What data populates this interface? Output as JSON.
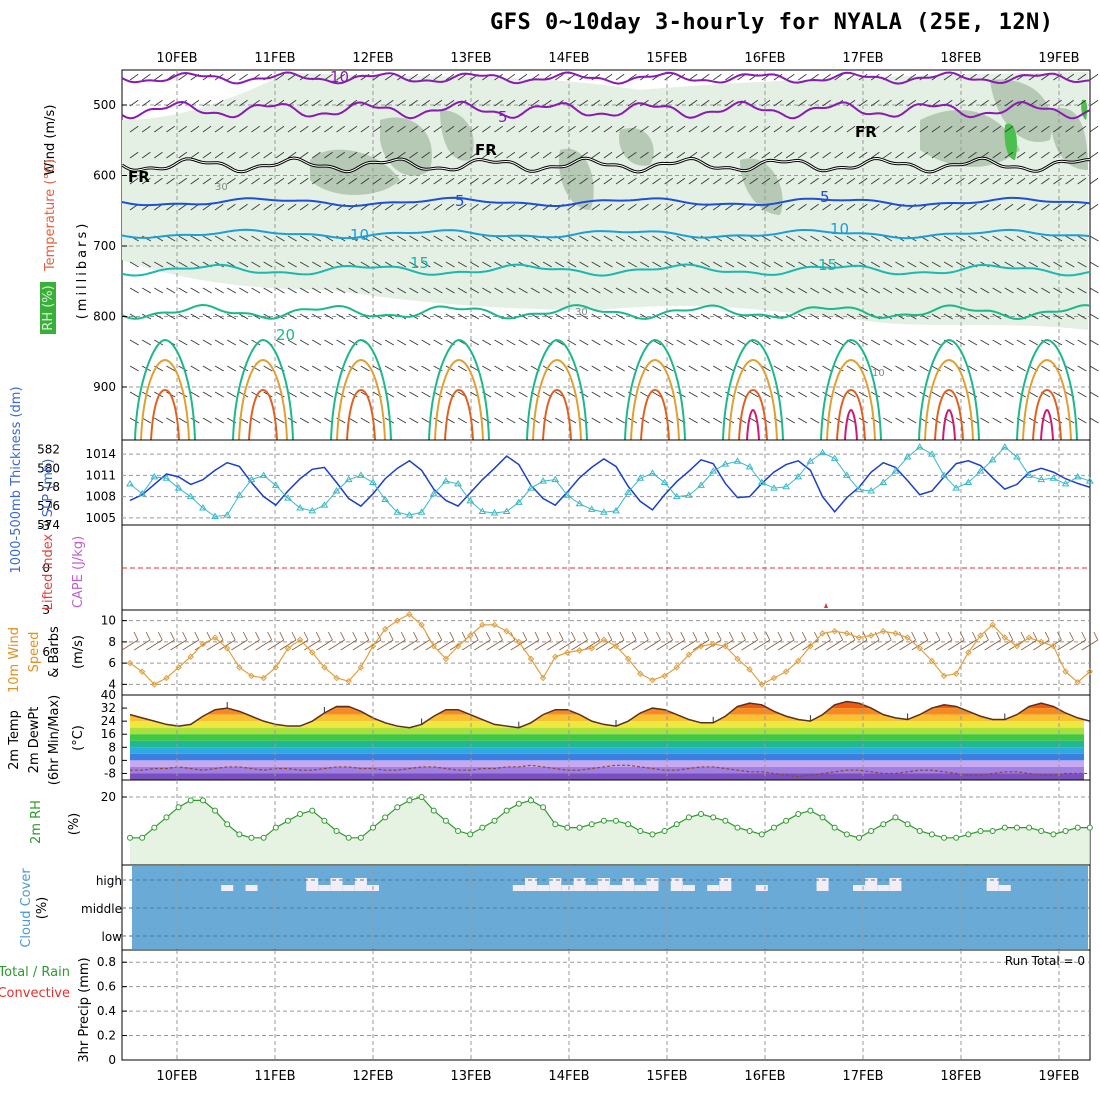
{
  "title": "GFS 0~10day 3-hourly for NYALA (25E, 12N)",
  "dates": [
    "10FEB",
    "11FEB",
    "12FEB",
    "13FEB",
    "14FEB",
    "15FEB",
    "16FEB",
    "17FEB",
    "18FEB",
    "19FEB"
  ],
  "colors": {
    "cross_section_purple": "#8a1ab3",
    "cross_section_black": "#000000",
    "cross_section_blue": "#1e4fd6",
    "cross_section_lightblue": "#1aa0d6",
    "cross_section_teal": "#1ab8b0",
    "cross_section_green": "#1ab88a",
    "cross_section_orange": "#e0a030",
    "cross_section_dkorange": "#e06020",
    "cross_section_magenta": "#d01a70",
    "rh_fill_light": "#e3f0e3",
    "rh_fill_mid": "#b5c9b5",
    "rh_fill_dark": "#8aa08a",
    "thickness_line": "#1a3fc8",
    "slp_line": "#3ab8c8",
    "wind_speed_line": "#e0a040",
    "wind_barbs": "#8b5a3a",
    "rh2m_line": "#2e9a2e",
    "rh2m_fill": "#e6f2e2",
    "cloud_fill": "#6aaad6",
    "cloud_clear": "#f3eef6",
    "lifted_index_zero": "#e03030"
  },
  "panels": {
    "cross_section": {
      "ylabel_wind": "Wind (m/s)",
      "ylabel_temp": "Temperature (°C)",
      "ylabel_rh": "RH (%)",
      "ylabel_pressure": "(millibars)",
      "yticks": [
        "500",
        "600",
        "700",
        "800",
        "900"
      ],
      "contour_labels": [
        {
          "text": "10",
          "series": "purple"
        },
        {
          "text": "5",
          "series": "purple"
        },
        {
          "text": "FR",
          "series": "black"
        },
        {
          "text": "FR",
          "series": "black"
        },
        {
          "text": "FR",
          "series": "black"
        },
        {
          "text": "5",
          "series": "blue"
        },
        {
          "text": "5",
          "series": "blue"
        },
        {
          "text": "10",
          "series": "lightblue"
        },
        {
          "text": "10",
          "series": "lightblue"
        },
        {
          "text": "15",
          "series": "teal"
        },
        {
          "text": "15",
          "series": "teal"
        },
        {
          "text": "20",
          "series": "green"
        },
        {
          "text": "30",
          "series": "rh"
        },
        {
          "text": "30",
          "series": "rh"
        },
        {
          "text": "10",
          "series": "rh"
        }
      ]
    },
    "thickness_slp": {
      "ylabel_left": "1000-500mb Thickness (dm)",
      "ylabel_right": "SLP (mb)",
      "yticks_left": [
        "574",
        "576",
        "578",
        "580",
        "582"
      ],
      "yticks_right": [
        "1005",
        "1008",
        "1011",
        "1014"
      ]
    },
    "cape_li": {
      "ylabel_left": "Lifted Index",
      "ylabel_right": "CAPE (J/kg)",
      "yticks": [
        "-3",
        "0",
        "3",
        "6"
      ]
    },
    "wind10m": {
      "ylabel_left": "10m Wind",
      "ylabel_mid": "Speed",
      "ylabel_right": "& Barbs",
      "unit": "(m/s)",
      "yticks": [
        "4",
        "6",
        "8",
        "10"
      ]
    },
    "temp2m": {
      "ylabel_left": "2m Temp",
      "ylabel_mid": "2m DewPt",
      "ylabel_right": "(6hr Min/Max)",
      "unit": "(°C)",
      "yticks": [
        "40",
        "32",
        "24",
        "16",
        "8",
        "0",
        "-8"
      ]
    },
    "rh2m": {
      "ylabel": "2m RH",
      "unit": "(%)",
      "yticks": [
        "20"
      ]
    },
    "cloud": {
      "ylabel": "Cloud Cover",
      "unit": "(%)",
      "levels": [
        "high",
        "middle",
        "low"
      ]
    },
    "precip": {
      "ylabel_left": "Total / Rain",
      "ylabel_right": "Convective",
      "ylabel_mid": "3hr Precip (mm)",
      "yticks": [
        "0.8",
        "0.6",
        "0.4",
        "0.2",
        "0"
      ],
      "run_total": "Run Total = 0"
    }
  },
  "chart_data": [
    {
      "type": "line",
      "title": "1000-500mb Thickness / SLP",
      "x_unit": "forecast step (3-hourly from 09FEB 12Z)",
      "series": [
        {
          "name": "1000-500mb Thickness (dm)",
          "values": [
            576.6,
            577.2,
            578.3,
            579.4,
            579.1,
            578.3,
            578.8,
            579.8,
            580.6,
            580.2,
            578.5,
            577.0,
            576.1,
            577.6,
            578.9,
            579.9,
            580.1,
            578.5,
            576.8,
            576.0,
            577.3,
            578.9,
            580.0,
            580.8,
            579.8,
            577.8,
            576.6,
            576.0,
            577.4,
            578.8,
            580.0,
            581.3,
            580.4,
            578.2,
            576.8,
            576.1,
            577.5,
            579.0,
            580.1,
            581.0,
            580.2,
            578.1,
            576.5,
            575.6,
            577.2,
            578.6,
            579.7,
            580.9,
            580.5,
            578.4,
            576.9,
            577.0,
            578.4,
            579.6,
            580.4,
            580.8,
            579.8,
            577.0,
            575.4,
            576.9,
            578.0,
            579.6,
            580.6,
            580.1,
            578.7,
            577.2,
            577.6,
            579.1,
            580.5,
            580.8,
            580.3,
            579.0,
            577.8,
            578.3,
            579.6,
            580.0,
            579.6,
            578.9,
            578.4,
            578.0
          ]
        },
        {
          "name": "SLP (mb)",
          "values": [
            1009.8,
            1008.4,
            1010.8,
            1010.6,
            1009.2,
            1008.0,
            1006.4,
            1005.2,
            1005.4,
            1008.2,
            1010.4,
            1011.0,
            1009.6,
            1007.8,
            1006.4,
            1006.0,
            1006.8,
            1008.8,
            1010.4,
            1011.0,
            1010.0,
            1007.6,
            1005.8,
            1005.4,
            1005.8,
            1008.4,
            1010.2,
            1009.8,
            1007.4,
            1005.9,
            1005.7,
            1005.9,
            1007.2,
            1009.2,
            1010.2,
            1010.4,
            1008.2,
            1007.0,
            1006.2,
            1005.8,
            1006.0,
            1008.6,
            1010.6,
            1011.3,
            1010.0,
            1008.0,
            1008.2,
            1009.6,
            1011.6,
            1012.6,
            1013.0,
            1012.2,
            1010.0,
            1009.2,
            1009.4,
            1010.8,
            1013.0,
            1014.2,
            1013.4,
            1011.0,
            1009.0,
            1008.8,
            1010.0,
            1011.6,
            1013.6,
            1015.0,
            1014.0,
            1011.0,
            1009.2,
            1010.0,
            1011.6,
            1013.2,
            1015.0,
            1013.6,
            1011.0,
            1010.4,
            1010.6,
            1009.8,
            1010.8,
            1010.2
          ]
        }
      ],
      "ylim_left": [
        574,
        583
      ],
      "ylim_right": [
        1004,
        1016
      ]
    },
    {
      "type": "line",
      "title": "10m Wind Speed",
      "series": [
        {
          "name": "Speed (m/s)",
          "values": [
            6.0,
            5.2,
            4.0,
            4.6,
            5.6,
            6.6,
            7.8,
            8.4,
            7.4,
            5.6,
            4.8,
            4.6,
            5.6,
            7.4,
            8.2,
            7.0,
            5.6,
            4.6,
            4.3,
            5.6,
            7.6,
            9.2,
            10.0,
            10.6,
            9.6,
            7.6,
            6.4,
            7.6,
            8.6,
            9.6,
            9.6,
            9.0,
            8.0,
            6.4,
            4.6,
            6.6,
            7.0,
            7.2,
            7.4,
            8.2,
            7.6,
            6.4,
            5.0,
            4.4,
            4.8,
            5.6,
            6.8,
            7.6,
            7.8,
            7.6,
            6.4,
            5.4,
            4.0,
            4.6,
            5.2,
            6.2,
            7.6,
            8.8,
            9.0,
            8.8,
            8.4,
            8.6,
            9.0,
            8.8,
            8.4,
            7.4,
            6.2,
            4.8,
            5.0,
            7.0,
            8.6,
            9.6,
            8.4,
            7.6,
            8.4,
            8.0,
            7.6,
            5.2,
            4.2,
            5.2
          ]
        }
      ],
      "ylim": [
        3,
        11
      ]
    },
    {
      "type": "area",
      "title": "2m Temp / DewPt",
      "series": [
        {
          "name": "2m Temp (°C)",
          "values": [
            28,
            26,
            24,
            22,
            21,
            22,
            27,
            31,
            32,
            30,
            27,
            24,
            22,
            21,
            21,
            24,
            29,
            33,
            33,
            30,
            26,
            23,
            21,
            20,
            22,
            27,
            31,
            31,
            28,
            25,
            22,
            21,
            20,
            23,
            28,
            31,
            31,
            28,
            24,
            22,
            21,
            24,
            29,
            32,
            31,
            28,
            25,
            23,
            23,
            27,
            33,
            35,
            34,
            30,
            27,
            25,
            24,
            28,
            34,
            36,
            35,
            32,
            28,
            26,
            25,
            28,
            32,
            34,
            33,
            30,
            27,
            25,
            25,
            28,
            33,
            35,
            33,
            29,
            26,
            24
          ]
        },
        {
          "name": "2m DewPt (°C)",
          "values": [
            -6,
            -6,
            -5,
            -5,
            -4,
            -5,
            -6,
            -5,
            -4,
            -4,
            -5,
            -6,
            -5,
            -5,
            -6,
            -6,
            -5,
            -4,
            -4,
            -5,
            -5,
            -6,
            -6,
            -5,
            -4,
            -4,
            -5,
            -6,
            -6,
            -5,
            -5,
            -4,
            -4,
            -3,
            -4,
            -5,
            -6,
            -6,
            -5,
            -4,
            -3,
            -3,
            -4,
            -5,
            -6,
            -6,
            -5,
            -4,
            -4,
            -5,
            -6,
            -7,
            -7,
            -8,
            -9,
            -10,
            -9,
            -8,
            -7,
            -6,
            -6,
            -7,
            -8,
            -8,
            -7,
            -6,
            -6,
            -7,
            -8,
            -9,
            -9,
            -8,
            -7,
            -7,
            -8,
            -9,
            -9,
            -8,
            -8,
            -8
          ]
        }
      ],
      "ylim": [
        -12,
        40
      ]
    },
    {
      "type": "area",
      "title": "2m RH",
      "series": [
        {
          "name": "2m RH (%)",
          "values": [
            8,
            8,
            11,
            14,
            17,
            19,
            19,
            16,
            12,
            9,
            8,
            8,
            11,
            13,
            15,
            16,
            13,
            10,
            8,
            8,
            11,
            14,
            17,
            19,
            20,
            16,
            13,
            10,
            9,
            11,
            13,
            16,
            18,
            19,
            17,
            12,
            11,
            11,
            12,
            13,
            13,
            12,
            10,
            9,
            10,
            12,
            14,
            15,
            14,
            13,
            11,
            10,
            9,
            11,
            13,
            15,
            16,
            14,
            11,
            9,
            8,
            10,
            12,
            14,
            12,
            10,
            9,
            8,
            8,
            9,
            10,
            10,
            11,
            11,
            11,
            10,
            9,
            10,
            11,
            11
          ]
        }
      ],
      "ylim": [
        0,
        25
      ]
    },
    {
      "type": "bar",
      "title": "Cloud Cover (high level clear fraction)",
      "series": [
        {
          "name": "high-level gap",
          "values": [
            0,
            0,
            0,
            0,
            0,
            0,
            0,
            0,
            1,
            0,
            1,
            0,
            0,
            0,
            0,
            1,
            1,
            1,
            1,
            1,
            1,
            0,
            0,
            0,
            0,
            0,
            0,
            0,
            0,
            0,
            0,
            0,
            1,
            1,
            1,
            1,
            1,
            1,
            1,
            1,
            1,
            1,
            1,
            1,
            0,
            1,
            1,
            0,
            1,
            1,
            0,
            0,
            1,
            0,
            0,
            0,
            0,
            1,
            0,
            0,
            1,
            1,
            1,
            1,
            0,
            0,
            0,
            0,
            0,
            0,
            0,
            1,
            1,
            0,
            0,
            0,
            0,
            0,
            0,
            0
          ]
        }
      ]
    },
    {
      "type": "bar",
      "title": "3hr Precip (mm)",
      "series": [
        {
          "name": "Total / Rain",
          "values": [
            0,
            0,
            0,
            0,
            0,
            0,
            0,
            0,
            0,
            0
          ]
        }
      ],
      "ylim": [
        0,
        0.9
      ]
    }
  ]
}
